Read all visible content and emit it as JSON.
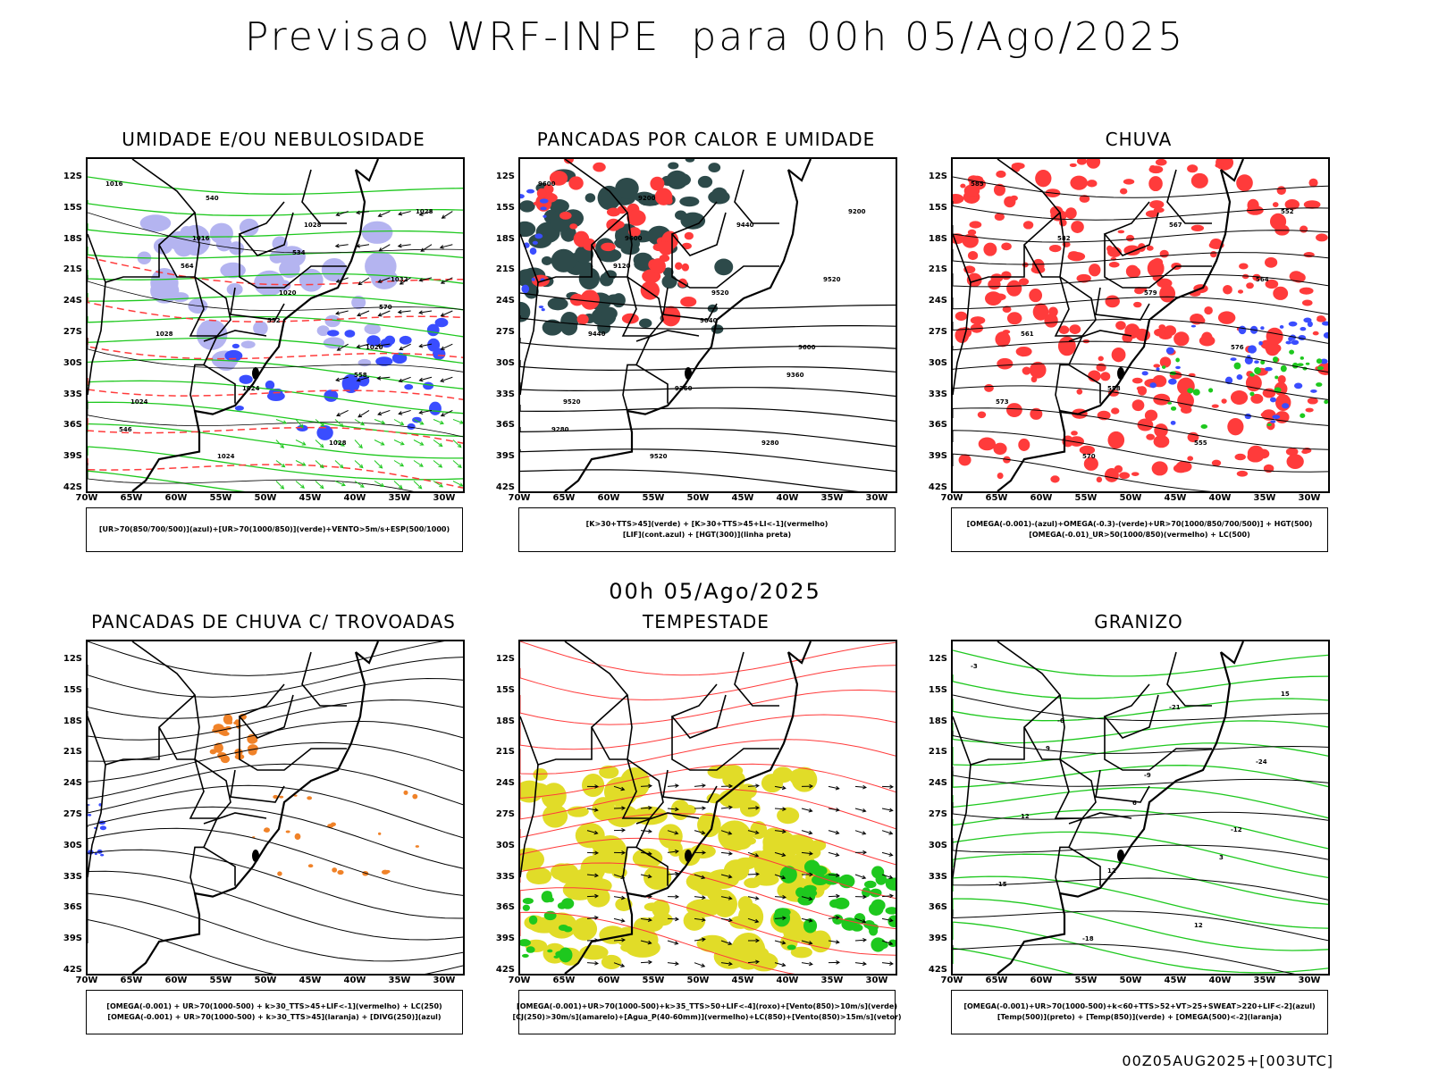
{
  "main_title": "Previsao WRF-INPE  para 00h 05/Ago/2025",
  "mid_title": "00h 05/Ago/2025",
  "footer_stamp": "00Z05AUG2025+[003UTC]",
  "lat_ticks": [
    "12S",
    "15S",
    "18S",
    "21S",
    "24S",
    "27S",
    "30S",
    "33S",
    "36S",
    "39S",
    "42S"
  ],
  "lon_ticks": [
    "70W",
    "65W",
    "60W",
    "55W",
    "50W",
    "45W",
    "40W",
    "35W",
    "30W"
  ],
  "colors": {
    "red": "#ff3b3b",
    "green": "#1ec81e",
    "blue": "#3a4dff",
    "lavender": "#b4b4f0",
    "darkteal": "#2d4a4a",
    "orange": "#f08228",
    "yellow": "#e1dc28"
  },
  "panels": [
    {
      "title": "UMIDADE E/OU NEBULOSIDADE",
      "legend": [
        "[UR>70(850/700/500)](azul)+[UR>70(1000/850)](verde)+VENTO>5m/s+ESP(500/1000)"
      ],
      "labels": [
        "1016",
        "1016",
        "1020",
        "1020",
        "1024",
        "1024",
        "1028",
        "1032",
        "1028",
        "1024",
        "1028",
        "1028",
        "564",
        "552",
        "558",
        "546",
        "540",
        "534",
        "570"
      ]
    },
    {
      "title": "PANCADAS POR CALOR E UMIDADE",
      "legend": [
        "[K>30+TTS>45](verde) + [K>30+TTS>45+LI<-1](vermelho)",
        "[LIF](cont.azul) + [HGT(300)](linha preta)"
      ],
      "labels": [
        "9600",
        "9600",
        "9520",
        "9600",
        "9520",
        "9520",
        "9440",
        "9520",
        "9440",
        "9360",
        "9280",
        "9200",
        "9120",
        "9040",
        "9360",
        "9280",
        "9200"
      ]
    },
    {
      "title": "CHUVA",
      "legend": [
        "[OMEGA(-0.001)-(azul)+OMEGA(-0.3)-(verde)+UR>70(1000/850/700/500)] + HGT(500)",
        "[OMEGA(-0.01)_UR>50(1000/850)(vermelho) + LC(500)"
      ],
      "labels": [
        "585",
        "582",
        "579",
        "576",
        "573",
        "570",
        "567",
        "564",
        "561",
        "558",
        "555",
        "552"
      ]
    },
    {
      "title": "PANCADAS DE CHUVA C/ TROVOADAS",
      "legend": [
        "[OMEGA(-0.001) + UR>70(1000-500) + k>30_TTS>45+LIF<-1](vermelho) + LC(250)",
        "[OMEGA(-0.001) + UR>70(1000-500) + k>30_TTS>45](laranja) + [DIVG(250)](azul)"
      ],
      "labels": []
    },
    {
      "title": "TEMPESTADE",
      "legend": [
        "[OMEGA(-0.001)+UR>70(1000-500)+k>35_TTS>50+LIF<-4](roxo)+[Vento(850)>10m/s](verde)",
        "[CJ(250)>30m/s](amarelo)+[Agua_P(40-60mm)](vermelho)+LC(850)+[Vento(850)>15m/s](vetor)"
      ],
      "labels": []
    },
    {
      "title": "GRANIZO",
      "legend": [
        "[OMEGA(-0.001)+UR>70(1000-500)+k<60+TTS>52+VT>25+SWEAT>220+LIF<-2](azul)",
        "[Temp(500)](preto) + [Temp(850)](verde) + [OMEGA(500)<-2](laranja)"
      ],
      "labels": [
        "-3",
        "-6",
        "-9",
        "-12",
        "-15",
        "-18",
        "-21",
        "-24",
        "12",
        "12",
        "12",
        "15",
        "9",
        "6",
        "3"
      ]
    }
  ]
}
